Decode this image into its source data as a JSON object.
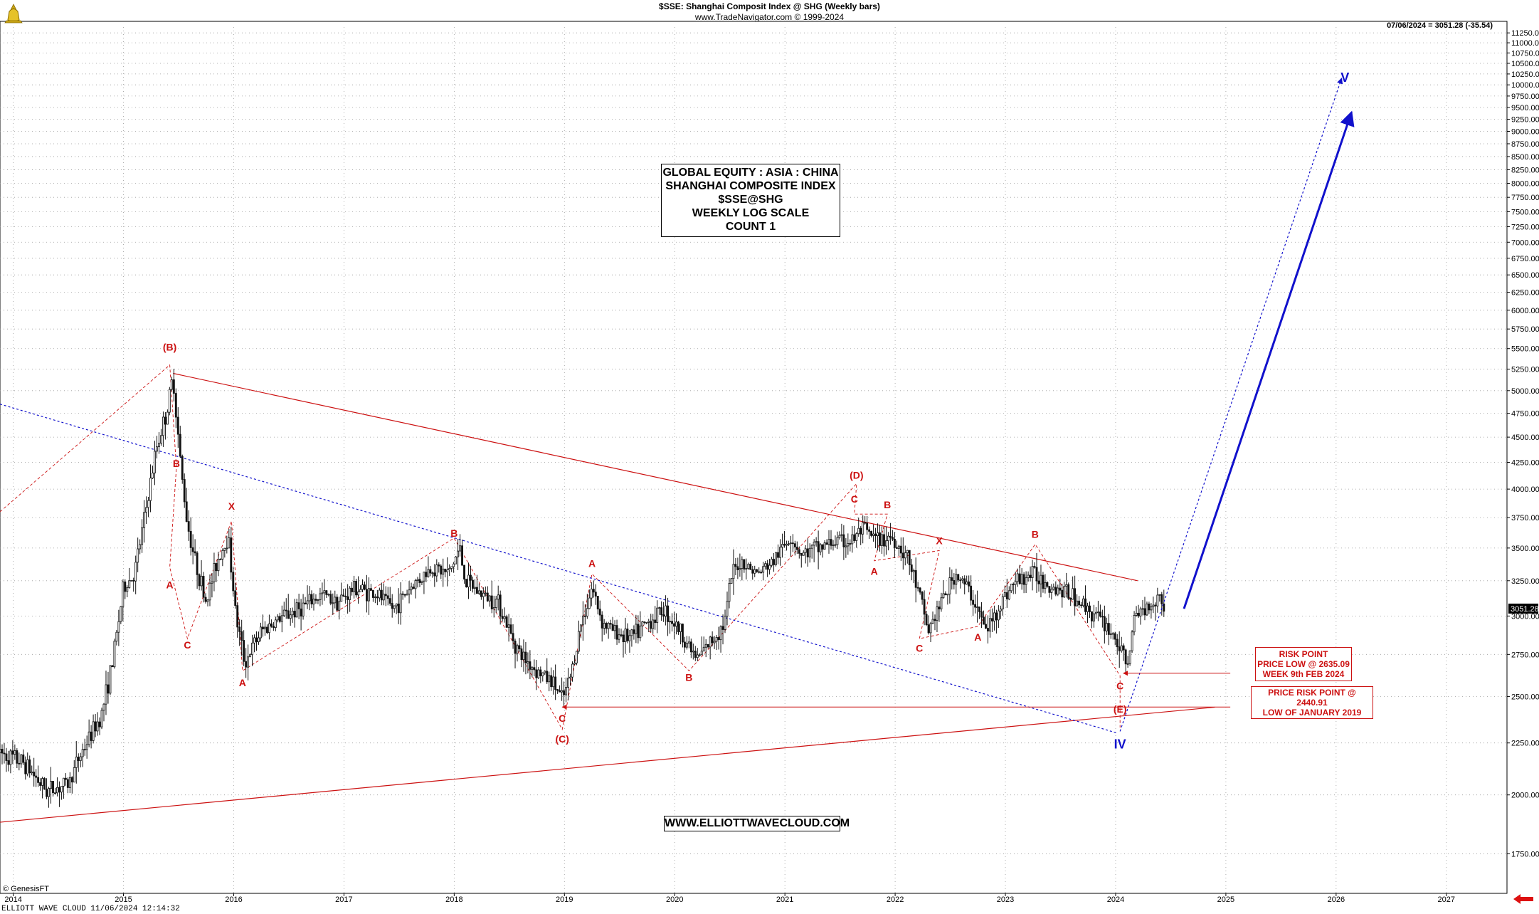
{
  "header": {
    "title": "$SSE:  Shanghai Composit Index @ SHG  (Weekly bars)",
    "subtitle": "www.TradeNavigator.com © 1999-2024",
    "last_price": "07/06/2024 = 3051.28 (-35.54)"
  },
  "title_box": {
    "lines": [
      "GLOBAL EQUITY : ASIA : CHINA",
      "SHANGHAI COMPOSITE INDEX",
      "$SSE@SHG",
      "WEEKLY LOG SCALE",
      "COUNT 1"
    ]
  },
  "website": "WWW.ELLIOTTWAVECLOUD.COM",
  "risk_box_1": [
    "RISK POINT",
    "PRICE LOW @ 2635.09",
    "WEEK 9th FEB 2024"
  ],
  "risk_box_2": [
    "PRICE RISK POINT @ 2440.91",
    "LOW OF JANUARY 2019"
  ],
  "footer": "ELLIOTT WAVE CLOUD   11/06/2024 12:14:32",
  "source_note": "© GenesisFT",
  "colors": {
    "red": "#cc1111",
    "blue": "#1111cc",
    "candle": "#111111",
    "grid": "#9a9a9a"
  },
  "chart_data": {
    "type": "candlestick",
    "scale": "log",
    "ylim": [
      1600,
      11400
    ],
    "xlim": [
      2013.88,
      2027.55
    ],
    "y_ticks": [
      1750,
      2000,
      2250,
      2500,
      2750,
      3000,
      3250,
      3500,
      3750,
      4000,
      4250,
      4500,
      4750,
      5000,
      5250,
      5500,
      5750,
      6000,
      6250,
      6500,
      6750,
      7000,
      7250,
      7500,
      7750,
      8000,
      8250,
      8500,
      8750,
      9000,
      9250,
      9500,
      9750,
      10000,
      10250,
      10500,
      10750,
      11000,
      11250
    ],
    "y_tick_labels": [
      "1750.00",
      "2000.00",
      "2250.00",
      "2500.00",
      "2750.00",
      "3000.00",
      "3250.00",
      "3500.00",
      "3750.00",
      "4000.00",
      "4250.00",
      "4500.00",
      "4750.00",
      "5000.00",
      "5250.00",
      "5500.00",
      "5750.00",
      "6000.00",
      "6250.00",
      "6500.00",
      "6750.00",
      "7000.00",
      "7250.00",
      "7500.00",
      "7750.00",
      "8000.00",
      "8250.00",
      "8500.00",
      "8750.00",
      "9000.00",
      "9250.00",
      "9500.00",
      "9750.00",
      "10000.00",
      "10250.00",
      "10500.00",
      "10750.00",
      "11000.00",
      "11250.00"
    ],
    "x_ticks": [
      2014,
      2015,
      2016,
      2017,
      2018,
      2019,
      2020,
      2021,
      2022,
      2023,
      2024,
      2025,
      2026,
      2027
    ],
    "x_tick_labels": [
      "2014",
      "2015",
      "2016",
      "2017",
      "2018",
      "2019",
      "2020",
      "2021",
      "2022",
      "2023",
      "2024",
      "2025",
      "2026",
      "2027"
    ],
    "last_price_label": "3051.28",
    "grid": true,
    "price_path": [
      [
        2013.88,
        2200
      ],
      [
        2014.1,
        2150
      ],
      [
        2014.3,
        2020
      ],
      [
        2014.5,
        2050
      ],
      [
        2014.6,
        2180
      ],
      [
        2014.8,
        2400
      ],
      [
        2014.9,
        2700
      ],
      [
        2015.0,
        3200
      ],
      [
        2015.1,
        3300
      ],
      [
        2015.2,
        3800
      ],
      [
        2015.3,
        4400
      ],
      [
        2015.4,
        4800
      ],
      [
        2015.45,
        5170
      ],
      [
        2015.52,
        4200
      ],
      [
        2015.58,
        3700
      ],
      [
        2015.65,
        3400
      ],
      [
        2015.75,
        3100
      ],
      [
        2015.85,
        3400
      ],
      [
        2015.95,
        3600
      ],
      [
        2016.02,
        3000
      ],
      [
        2016.1,
        2700
      ],
      [
        2016.25,
        2900
      ],
      [
        2016.45,
        3000
      ],
      [
        2016.6,
        3050
      ],
      [
        2016.8,
        3150
      ],
      [
        2016.95,
        3100
      ],
      [
        2017.1,
        3200
      ],
      [
        2017.3,
        3150
      ],
      [
        2017.45,
        3050
      ],
      [
        2017.6,
        3200
      ],
      [
        2017.8,
        3350
      ],
      [
        2017.95,
        3300
      ],
      [
        2018.05,
        3500
      ],
      [
        2018.1,
        3250
      ],
      [
        2018.25,
        3150
      ],
      [
        2018.4,
        3100
      ],
      [
        2018.5,
        2900
      ],
      [
        2018.6,
        2750
      ],
      [
        2018.75,
        2650
      ],
      [
        2018.9,
        2580
      ],
      [
        2018.98,
        2480
      ],
      [
        2019.05,
        2600
      ],
      [
        2019.15,
        2950
      ],
      [
        2019.25,
        3200
      ],
      [
        2019.35,
        2950
      ],
      [
        2019.45,
        2900
      ],
      [
        2019.6,
        2850
      ],
      [
        2019.75,
        2950
      ],
      [
        2019.9,
        3050
      ],
      [
        2020.05,
        2900
      ],
      [
        2020.2,
        2720
      ],
      [
        2020.35,
        2850
      ],
      [
        2020.45,
        2950
      ],
      [
        2020.52,
        3300
      ],
      [
        2020.6,
        3400
      ],
      [
        2020.75,
        3300
      ],
      [
        2020.9,
        3400
      ],
      [
        2021.05,
        3600
      ],
      [
        2021.15,
        3450
      ],
      [
        2021.3,
        3500
      ],
      [
        2021.45,
        3550
      ],
      [
        2021.6,
        3550
      ],
      [
        2021.7,
        3650
      ],
      [
        2021.85,
        3550
      ],
      [
        2021.95,
        3600
      ],
      [
        2022.1,
        3450
      ],
      [
        2022.2,
        3200
      ],
      [
        2022.3,
        2900
      ],
      [
        2022.45,
        3150
      ],
      [
        2022.55,
        3300
      ],
      [
        2022.65,
        3200
      ],
      [
        2022.75,
        3050
      ],
      [
        2022.82,
        2900
      ],
      [
        2022.9,
        3000
      ],
      [
        2023.0,
        3150
      ],
      [
        2023.1,
        3250
      ],
      [
        2023.25,
        3300
      ],
      [
        2023.35,
        3250
      ],
      [
        2023.45,
        3200
      ],
      [
        2023.6,
        3150
      ],
      [
        2023.75,
        3050
      ],
      [
        2023.9,
        2950
      ],
      [
        2024.0,
        2850
      ],
      [
        2024.1,
        2680
      ],
      [
        2024.18,
        3000
      ],
      [
        2024.25,
        3050
      ],
      [
        2024.35,
        3100
      ],
      [
        2024.4,
        3150
      ],
      [
        2024.45,
        3051
      ]
    ],
    "wave_labels": [
      {
        "text": "(B)",
        "x": 2015.42,
        "y": 5520,
        "color": "red"
      },
      {
        "text": "B",
        "x": 2015.48,
        "y": 4240,
        "color": "red"
      },
      {
        "text": "A",
        "x": 2015.42,
        "y": 3220,
        "color": "red"
      },
      {
        "text": "C",
        "x": 2015.58,
        "y": 2810,
        "color": "red"
      },
      {
        "text": "X",
        "x": 2015.98,
        "y": 3850,
        "color": "red"
      },
      {
        "text": "A",
        "x": 2016.08,
        "y": 2580,
        "color": "red"
      },
      {
        "text": "B",
        "x": 2018.0,
        "y": 3620,
        "color": "red"
      },
      {
        "text": "C",
        "x": 2018.98,
        "y": 2380,
        "color": "red"
      },
      {
        "text": "(C)",
        "x": 2018.98,
        "y": 2270,
        "color": "red"
      },
      {
        "text": "A",
        "x": 2019.25,
        "y": 3380,
        "color": "red"
      },
      {
        "text": "B",
        "x": 2020.13,
        "y": 2610,
        "color": "red"
      },
      {
        "text": "(D)",
        "x": 2021.65,
        "y": 4130,
        "color": "red"
      },
      {
        "text": "C",
        "x": 2021.63,
        "y": 3910,
        "color": "red"
      },
      {
        "text": "B",
        "x": 2021.93,
        "y": 3860,
        "color": "red"
      },
      {
        "text": "A",
        "x": 2021.81,
        "y": 3320,
        "color": "red"
      },
      {
        "text": "X",
        "x": 2022.4,
        "y": 3560,
        "color": "red"
      },
      {
        "text": "C",
        "x": 2022.22,
        "y": 2790,
        "color": "red"
      },
      {
        "text": "A",
        "x": 2022.75,
        "y": 2860,
        "color": "red"
      },
      {
        "text": "B",
        "x": 2023.27,
        "y": 3610,
        "color": "red"
      },
      {
        "text": "C",
        "x": 2024.04,
        "y": 2560,
        "color": "red"
      },
      {
        "text": "(E)",
        "x": 2024.04,
        "y": 2430,
        "color": "red"
      },
      {
        "text": "IV",
        "x": 2024.04,
        "y": 2240,
        "color": "blue"
      },
      {
        "text": "V",
        "x": 2026.08,
        "y": 10150,
        "color": "blue"
      }
    ],
    "trend_lines": [
      {
        "from": [
          2015.45,
          5200
        ],
        "to": [
          2024.2,
          3250
        ],
        "color": "red",
        "style": "solid"
      },
      {
        "from": [
          2013.88,
          1880
        ],
        "to": [
          2024.9,
          2440
        ],
        "color": "red",
        "style": "solid"
      },
      {
        "from": [
          2013.88,
          4850
        ],
        "to": [
          2024.02,
          2300
        ],
        "color": "blue",
        "style": "dotted"
      }
    ],
    "wave_lines": [
      [
        [
          2013.88,
          3800
        ],
        [
          2015.42,
          5300
        ],
        [
          2015.48,
          4200
        ],
        [
          2015.42,
          3350
        ],
        [
          2015.58,
          2850
        ],
        [
          2015.98,
          3720
        ],
        [
          2016.08,
          2650
        ],
        [
          2018.0,
          3580
        ],
        [
          2018.98,
          2320
        ],
        [
          2019.25,
          3300
        ],
        [
          2020.13,
          2650
        ],
        [
          2021.65,
          4050
        ],
        [
          2021.63,
          3780
        ],
        [
          2021.93,
          3780
        ],
        [
          2021.81,
          3400
        ],
        [
          2022.4,
          3480
        ],
        [
          2022.22,
          2850
        ],
        [
          2022.75,
          2930
        ],
        [
          2023.27,
          3530
        ],
        [
          2024.04,
          2620
        ],
        [
          2024.04,
          2330
        ]
      ]
    ],
    "projections": [
      {
        "from": [
          2024.04,
          2310
        ],
        "to": [
          2026.05,
          10150
        ],
        "color": "blue",
        "style": "dotted"
      },
      {
        "from": [
          2024.62,
          3050
        ],
        "to": [
          2026.14,
          9400
        ],
        "color": "blue",
        "style": "solid"
      }
    ],
    "risk_arrows": [
      {
        "y": 2635.09,
        "from_x": 2025.04,
        "to_x": 2024.07
      },
      {
        "y": 2440.91,
        "from_x": 2025.04,
        "to_x": 2018.98
      }
    ]
  }
}
